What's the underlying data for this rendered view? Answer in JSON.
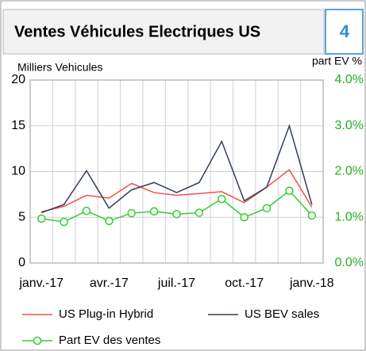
{
  "header": {
    "title": "Ventes Véhicules Electriques US",
    "number": "4"
  },
  "chart_data": {
    "type": "line",
    "y_label": "Milliers Vehicules",
    "y2_label": "part EV %",
    "categories": [
      "janv.-17",
      null,
      null,
      "avr.-17",
      null,
      null,
      "juil.-17",
      null,
      null,
      "oct.-17",
      null,
      null,
      "janv.-18"
    ],
    "series": [
      {
        "name": "US Plug-in Hybrid",
        "color": "#f0504f",
        "values": [
          5.6,
          6.2,
          7.4,
          7.1,
          8.7,
          7.7,
          7.4,
          7.6,
          7.8,
          6.6,
          8.3,
          10.2,
          6.1
        ]
      },
      {
        "name": "US BEV sales",
        "color": "#2e3f5c",
        "values": [
          5.5,
          6.4,
          10.1,
          6.0,
          8.0,
          8.8,
          7.7,
          8.8,
          13.3,
          6.8,
          8.3,
          15.0,
          6.4
        ]
      },
      {
        "name": "Part EV des ventes",
        "color": "#33cc33",
        "axis": "y2",
        "marker": "circle",
        "values": [
          0.97,
          0.9,
          1.14,
          0.92,
          1.09,
          1.13,
          1.07,
          1.1,
          1.4,
          1.0,
          1.2,
          1.58,
          1.04
        ]
      }
    ],
    "ylim": [
      0,
      20
    ],
    "yticks": [
      0,
      5,
      10,
      15,
      20
    ],
    "y2lim": [
      0,
      4
    ],
    "y2ticks": [
      {
        "value": 0,
        "label": "0.0%"
      },
      {
        "value": 1,
        "label": "1.0%"
      },
      {
        "value": 2,
        "label": "2.0%"
      },
      {
        "value": 3,
        "label": "3.0%"
      },
      {
        "value": 4,
        "label": "4.0%"
      }
    ],
    "grid": true,
    "legend": "bottom"
  }
}
